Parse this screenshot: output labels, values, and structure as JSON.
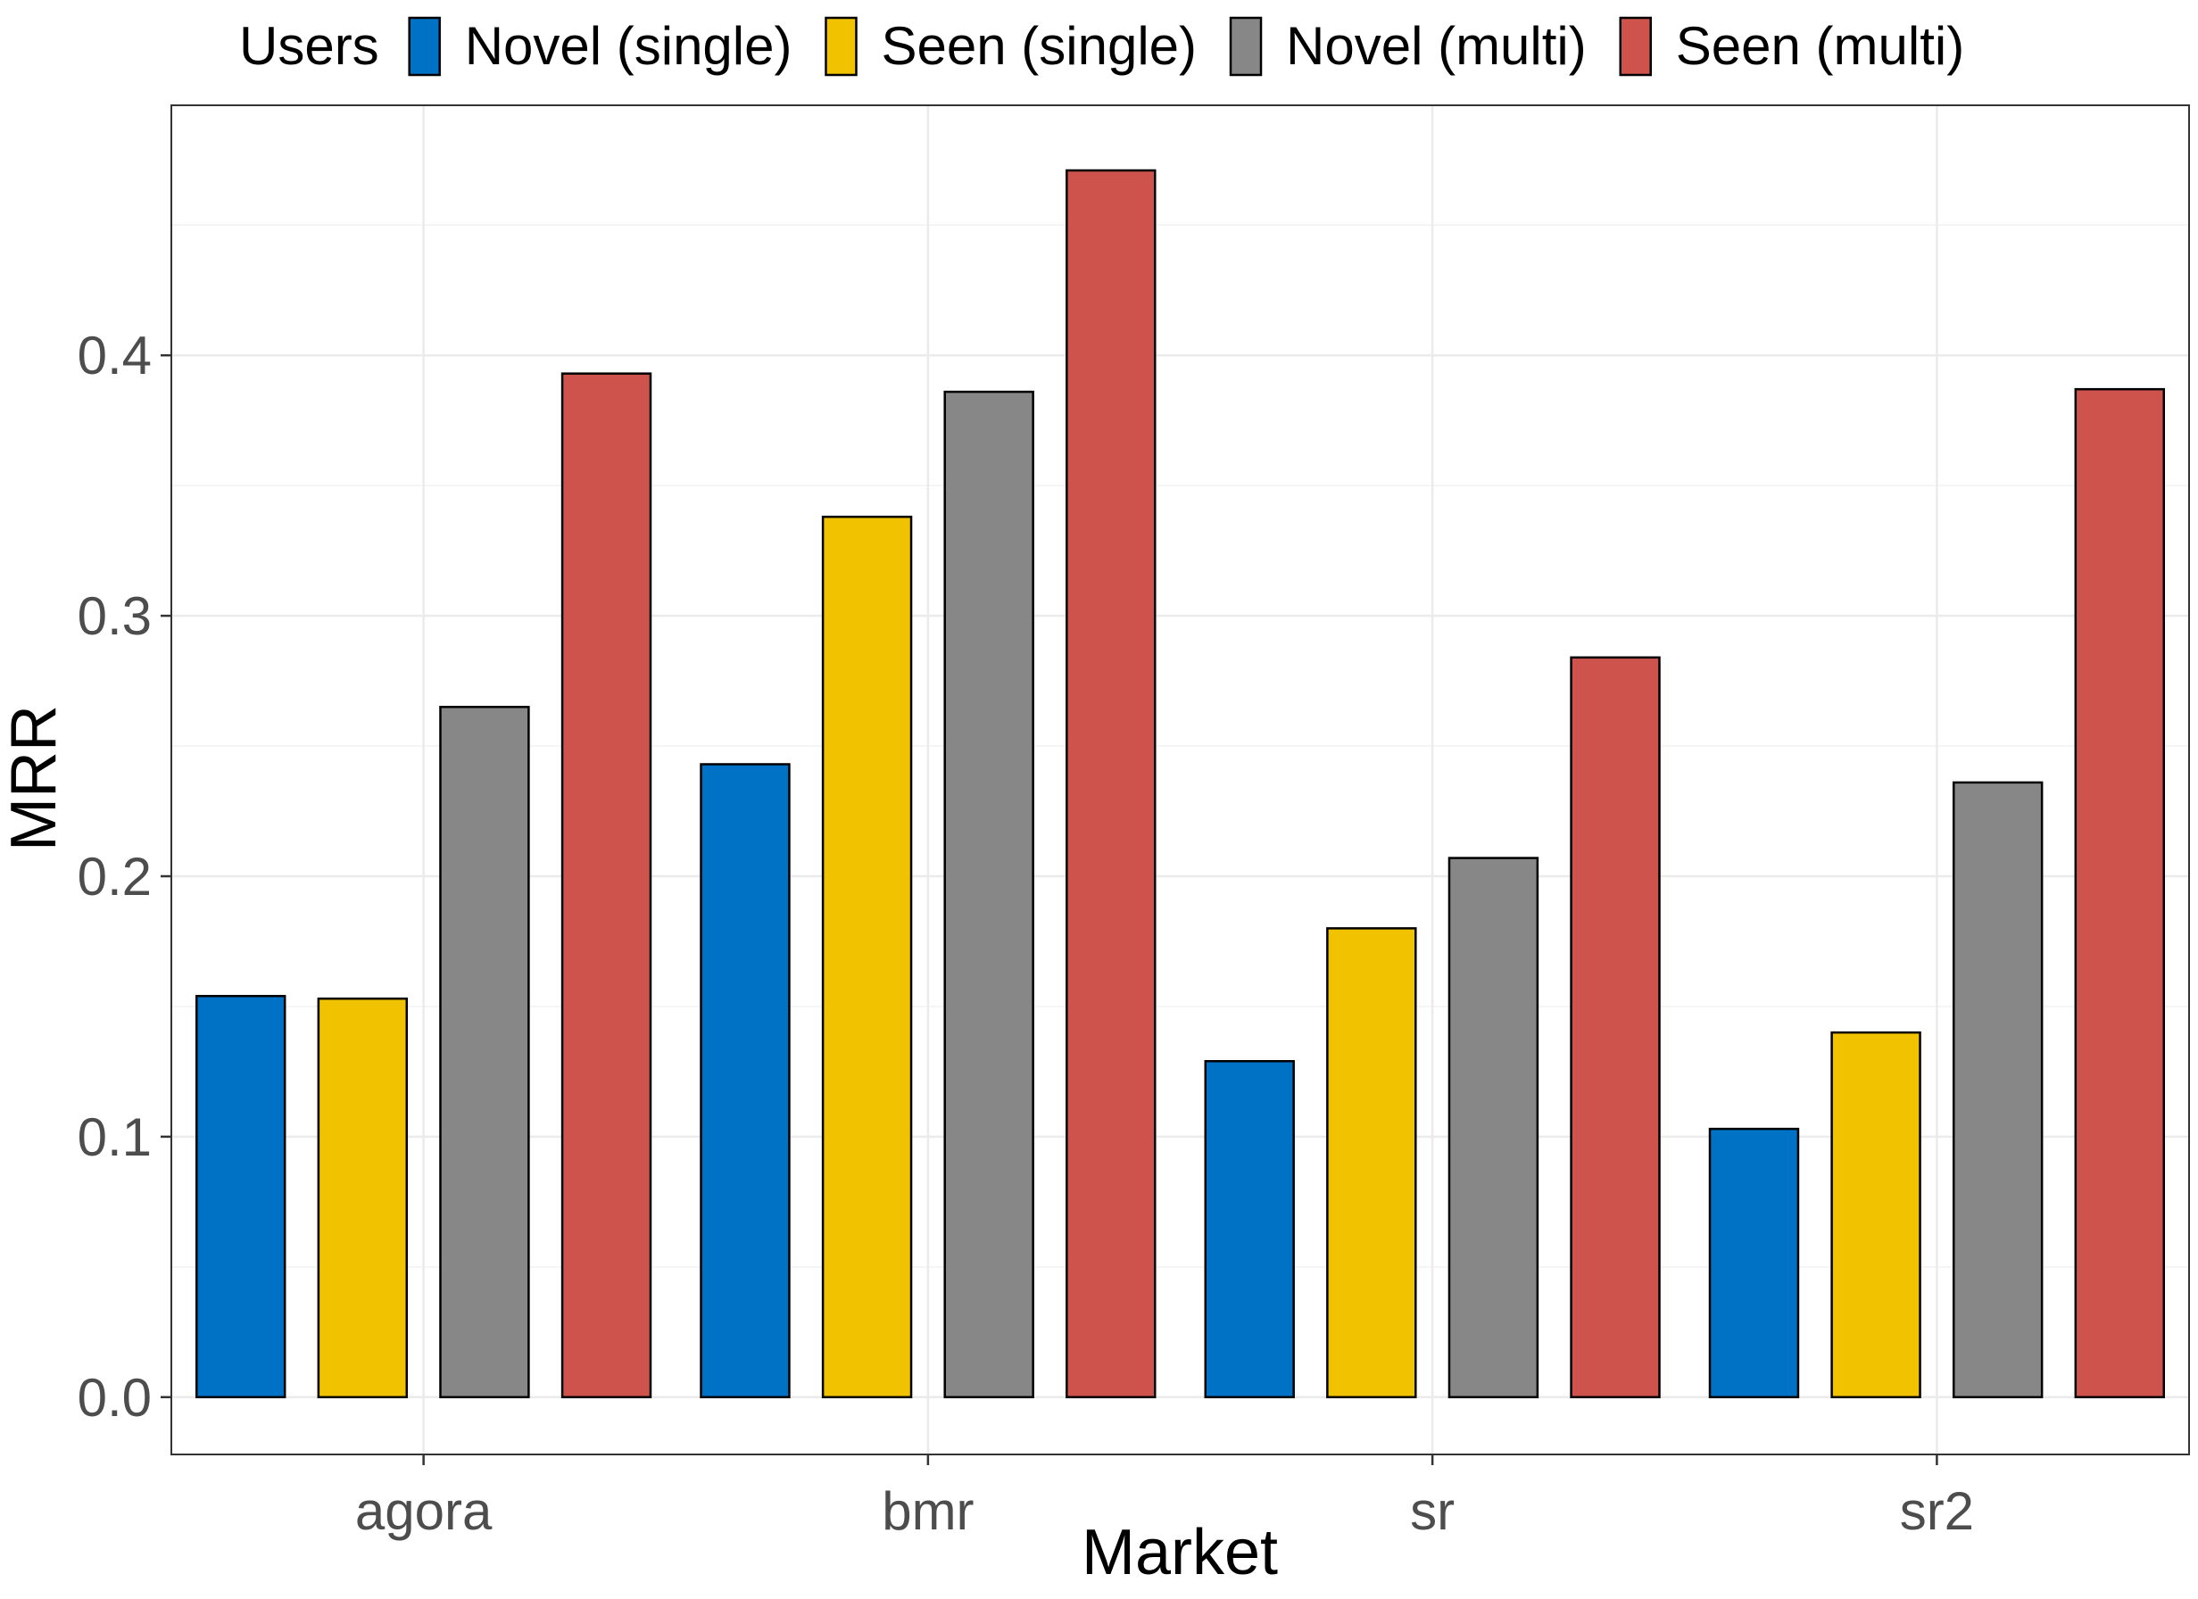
{
  "chart_data": {
    "type": "bar",
    "title": "",
    "xlabel": "Market",
    "ylabel": "MRR",
    "categories": [
      "agora",
      "bmr",
      "sr",
      "sr2"
    ],
    "ylim": [
      -0.022,
      0.496
    ],
    "yticks": [
      "0.0",
      "0.1",
      "0.2",
      "0.3",
      "0.4"
    ],
    "grid": true,
    "legend": {
      "title": "Users",
      "position": "top"
    },
    "series": [
      {
        "name": "Novel (single)",
        "color": "#0072C6",
        "values": [
          0.154,
          0.243,
          0.129,
          0.103
        ]
      },
      {
        "name": "Seen (single)",
        "color": "#F0C200",
        "values": [
          0.153,
          0.338,
          0.18,
          0.14
        ]
      },
      {
        "name": "Novel (multi)",
        "color": "#878787",
        "values": [
          0.265,
          0.386,
          0.207,
          0.236
        ]
      },
      {
        "name": "Seen (multi)",
        "color": "#CD534C",
        "values": [
          0.393,
          0.471,
          0.284,
          0.387
        ]
      }
    ]
  }
}
